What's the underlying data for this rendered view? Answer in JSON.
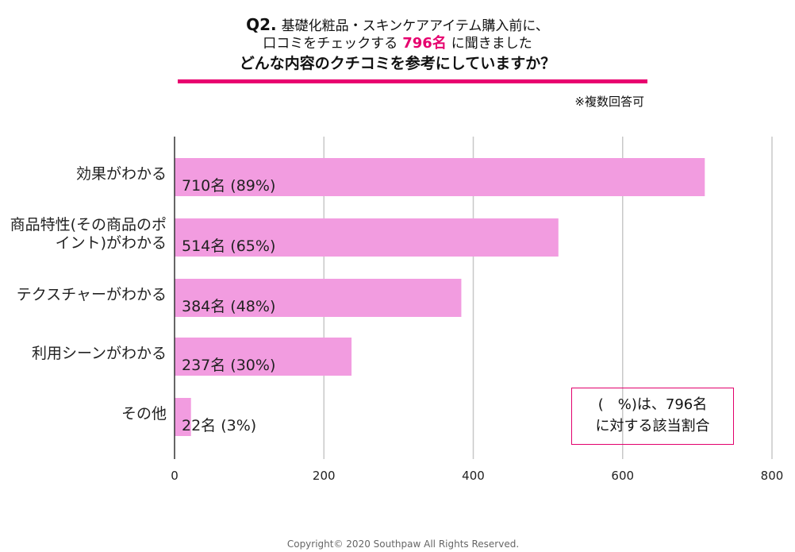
{
  "header": {
    "q_number": "Q2.",
    "line1_text": "基礎化粧品・スキンケアアイテム購入前に、",
    "line2_before": "口コミをチェックする",
    "line2_highlight": "796名",
    "line2_after": "に聞きました",
    "line3": "どんな内容のクチコミを参考にしていますか？",
    "note": "※複数回答可"
  },
  "chart_data": {
    "type": "bar",
    "orientation": "horizontal",
    "categories": [
      "効果がわかる",
      "商品特性(その商品のポイント)がわかる",
      "テクスチャーがわかる",
      "利用シーンがわかる",
      "その他"
    ],
    "values": [
      710,
      514,
      384,
      237,
      22
    ],
    "data_labels": [
      "710名 (89%)",
      "514名 (65%)",
      "384名 (48%)",
      "237名 (30%)",
      "22名 (3%)"
    ],
    "xlim": [
      0,
      800
    ],
    "xticks": [
      "0",
      "200",
      "400",
      "600",
      "800"
    ],
    "bar_color": "#f29ce0",
    "grid": true
  },
  "legend_box": {
    "line1": "(　%)は、796名",
    "line2": "に対する該当割合"
  },
  "copyright": "Copyright© 2020 Southpaw All Rights Reserved."
}
